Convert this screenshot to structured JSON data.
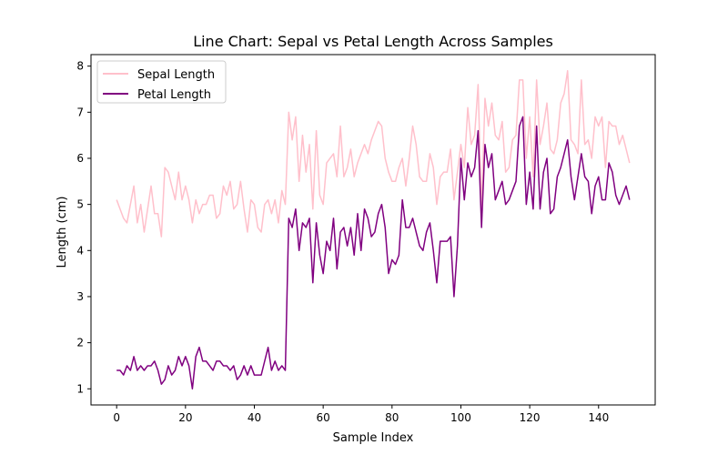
{
  "chart_data": {
    "type": "line",
    "title": "Line Chart: Sepal vs Petal Length Across Samples",
    "xlabel": "Sample Index",
    "ylabel": "Length (cm)",
    "xlim": [
      -7.45,
      156.45
    ],
    "ylim": [
      0.65,
      8.25
    ],
    "xticks": [
      0,
      20,
      40,
      60,
      80,
      100,
      120,
      140
    ],
    "yticks": [
      1,
      2,
      3,
      4,
      5,
      6,
      7,
      8
    ],
    "grid": false,
    "legend_position": "top-left",
    "series": [
      {
        "name": "Sepal Length",
        "color": "#ffc0cb",
        "values": [
          5.1,
          4.9,
          4.7,
          4.6,
          5.0,
          5.4,
          4.6,
          5.0,
          4.4,
          4.9,
          5.4,
          4.8,
          4.8,
          4.3,
          5.8,
          5.7,
          5.4,
          5.1,
          5.7,
          5.1,
          5.4,
          5.1,
          4.6,
          5.1,
          4.8,
          5.0,
          5.0,
          5.2,
          5.2,
          4.7,
          4.8,
          5.4,
          5.2,
          5.5,
          4.9,
          5.0,
          5.5,
          4.9,
          4.4,
          5.1,
          5.0,
          4.5,
          4.4,
          5.0,
          5.1,
          4.8,
          5.1,
          4.6,
          5.3,
          5.0,
          7.0,
          6.4,
          6.9,
          5.5,
          6.5,
          5.7,
          6.3,
          4.9,
          6.6,
          5.2,
          5.0,
          5.9,
          6.0,
          6.1,
          5.6,
          6.7,
          5.6,
          5.8,
          6.2,
          5.6,
          5.9,
          6.1,
          6.3,
          6.1,
          6.4,
          6.6,
          6.8,
          6.7,
          6.0,
          5.7,
          5.5,
          5.5,
          5.8,
          6.0,
          5.4,
          6.0,
          6.7,
          6.3,
          5.6,
          5.5,
          5.5,
          6.1,
          5.8,
          5.0,
          5.6,
          5.7,
          5.7,
          6.2,
          5.1,
          5.7,
          6.3,
          5.8,
          7.1,
          6.3,
          6.5,
          7.6,
          4.9,
          7.3,
          6.7,
          7.2,
          6.5,
          6.4,
          6.8,
          5.7,
          5.8,
          6.4,
          6.5,
          7.7,
          7.7,
          6.0,
          6.9,
          5.6,
          7.7,
          6.3,
          6.7,
          7.2,
          6.2,
          6.1,
          6.4,
          7.2,
          7.4,
          7.9,
          6.4,
          6.3,
          6.1,
          7.7,
          6.3,
          6.4,
          6.0,
          6.9,
          6.7,
          6.9,
          5.8,
          6.8,
          6.7,
          6.7,
          6.3,
          6.5,
          6.2,
          5.9
        ]
      },
      {
        "name": "Petal Length",
        "color": "#800080",
        "values": [
          1.4,
          1.4,
          1.3,
          1.5,
          1.4,
          1.7,
          1.4,
          1.5,
          1.4,
          1.5,
          1.5,
          1.6,
          1.4,
          1.1,
          1.2,
          1.5,
          1.3,
          1.4,
          1.7,
          1.5,
          1.7,
          1.5,
          1.0,
          1.7,
          1.9,
          1.6,
          1.6,
          1.5,
          1.4,
          1.6,
          1.6,
          1.5,
          1.5,
          1.4,
          1.5,
          1.2,
          1.3,
          1.5,
          1.3,
          1.5,
          1.3,
          1.3,
          1.3,
          1.6,
          1.9,
          1.4,
          1.6,
          1.4,
          1.5,
          1.4,
          4.7,
          4.5,
          4.9,
          4.0,
          4.6,
          4.5,
          4.7,
          3.3,
          4.6,
          3.9,
          3.5,
          4.2,
          4.0,
          4.7,
          3.6,
          4.4,
          4.5,
          4.1,
          4.5,
          3.9,
          4.8,
          4.0,
          4.9,
          4.7,
          4.3,
          4.4,
          4.8,
          5.0,
          4.5,
          3.5,
          3.8,
          3.7,
          3.9,
          5.1,
          4.5,
          4.5,
          4.7,
          4.4,
          4.1,
          4.0,
          4.4,
          4.6,
          4.0,
          3.3,
          4.2,
          4.2,
          4.2,
          4.3,
          3.0,
          4.1,
          6.0,
          5.1,
          5.9,
          5.6,
          5.8,
          6.6,
          4.5,
          6.3,
          5.8,
          6.1,
          5.1,
          5.3,
          5.5,
          5.0,
          5.1,
          5.3,
          5.5,
          6.7,
          6.9,
          5.0,
          5.7,
          4.9,
          6.7,
          4.9,
          5.7,
          6.0,
          4.8,
          4.9,
          5.6,
          5.8,
          6.1,
          6.4,
          5.6,
          5.1,
          5.6,
          6.1,
          5.6,
          5.5,
          4.8,
          5.4,
          5.6,
          5.1,
          5.1,
          5.9,
          5.7,
          5.2,
          5.0,
          5.2,
          5.4,
          5.1
        ]
      }
    ]
  }
}
